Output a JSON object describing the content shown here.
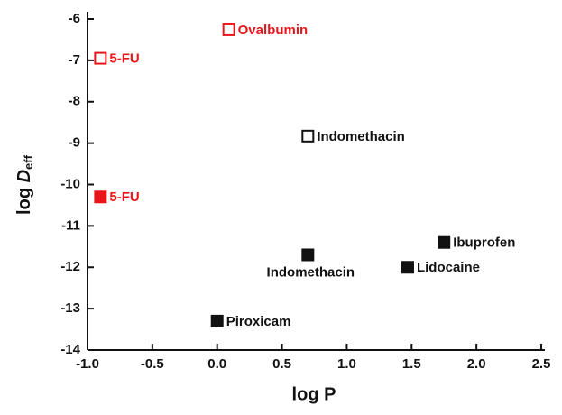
{
  "chart_data": {
    "type": "scatter",
    "x_label": "log P",
    "y_label": "log",
    "y_label_symbol": "D",
    "y_label_subscript": "eff",
    "xlim": [
      -1,
      2.5
    ],
    "ylim": [
      -14,
      -6
    ],
    "xticks": [
      {
        "value": -1,
        "label": "-1.0"
      },
      -0.5,
      {
        "value": 0,
        "label": "0.0"
      },
      0.5,
      {
        "value": 1,
        "label": "1.0"
      },
      1.5,
      {
        "value": 2,
        "label": "2.0"
      },
      2.5
    ],
    "yticks": [
      -14,
      -13,
      -12,
      -11,
      -10,
      -9,
      -8,
      -7,
      -6
    ],
    "points": [
      {
        "label": "Ovalbumin",
        "x": 0.09,
        "y": -6.26,
        "color": "#e8161b",
        "filled": false
      },
      {
        "label": "5-FU",
        "x": -0.9,
        "y": -6.95,
        "color": "#e8161b",
        "filled": false
      },
      {
        "label": "Indomethacin",
        "x": 0.7,
        "y": -8.83,
        "color": "#111111",
        "filled": false
      },
      {
        "label": "5-FU",
        "x": -0.9,
        "y": -10.3,
        "color": "#e8161b",
        "filled": true
      },
      {
        "label": "Indomethacin",
        "x": 0.7,
        "y": -11.7,
        "color": "#111111",
        "filled": true
      },
      {
        "label": "Ibuprofen",
        "x": 1.75,
        "y": -11.4,
        "color": "#111111",
        "filled": true
      },
      {
        "label": "Lidocaine",
        "x": 1.47,
        "y": -12.0,
        "color": "#111111",
        "filled": true
      },
      {
        "label": "Piroxicam",
        "x": 0.0,
        "y": -13.3,
        "color": "#111111",
        "filled": true
      }
    ]
  }
}
